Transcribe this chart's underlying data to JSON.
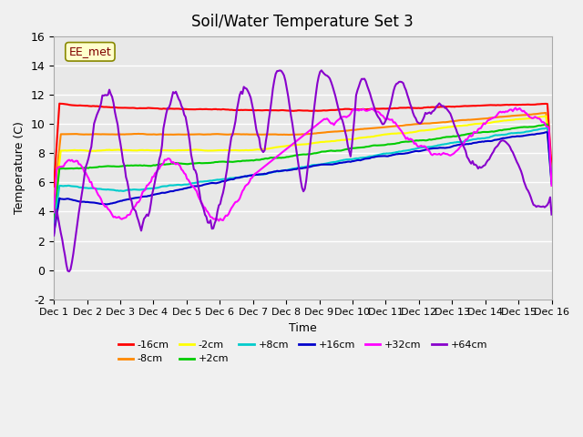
{
  "title": "Soil/Water Temperature Set 3",
  "xlabel": "Time",
  "ylabel": "Temperature (C)",
  "ylim": [
    -2,
    16
  ],
  "yticks": [
    -2,
    0,
    2,
    4,
    6,
    8,
    10,
    12,
    14,
    16
  ],
  "xlim": [
    0,
    15
  ],
  "xtick_labels": [
    "Dec 1",
    "Dec 2",
    "Dec 3",
    "Dec 4",
    "Dec 5",
    "Dec 6",
    "Dec 7",
    "Dec 8",
    "Dec 9",
    "Dec 10",
    "Dec 11",
    "Dec 12",
    "Dec 13",
    "Dec 14",
    "Dec 15",
    "Dec 16"
  ],
  "annotation_text": "EE_met",
  "series_colors": {
    "-16cm": "#ff0000",
    "-8cm": "#ff8800",
    "-2cm": "#ffff00",
    "+2cm": "#00cc00",
    "+8cm": "#00cccc",
    "+16cm": "#0000cc",
    "+32cm": "#ff00ff",
    "+64cm": "#8800cc"
  },
  "bg_color": "#e8e8e8",
  "grid_color": "#ffffff",
  "n_points": 360
}
